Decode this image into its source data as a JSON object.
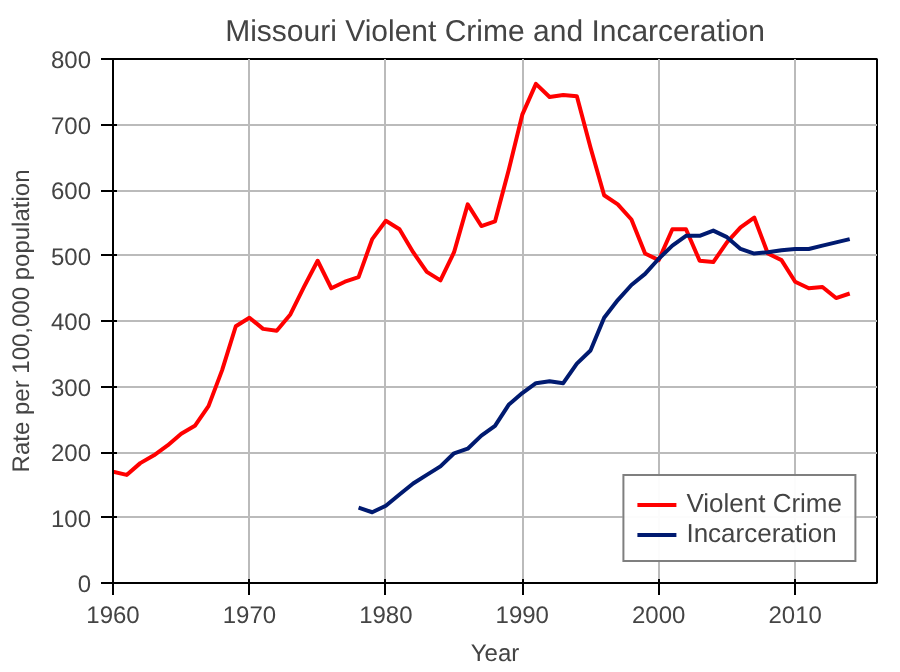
{
  "chart_data": {
    "type": "line",
    "title": "Missouri Violent Crime and Incarceration",
    "xlabel": "Year",
    "ylabel": "Rate per 100,000 population",
    "xlim": [
      1960,
      2016
    ],
    "xticks": [
      1960,
      1970,
      1980,
      1990,
      2000,
      2010
    ],
    "ylim": [
      0,
      800
    ],
    "yticks": [
      0,
      100,
      200,
      300,
      400,
      500,
      600,
      700,
      800
    ],
    "grid": true,
    "legend": "bottom right",
    "line_style": "solid",
    "series": [
      {
        "name": "Violent Crime",
        "color": "#ff0000",
        "x": [
          1960,
          1961,
          1962,
          1963,
          1964,
          1965,
          1966,
          1967,
          1968,
          1969,
          1970,
          1971,
          1972,
          1973,
          1974,
          1975,
          1976,
          1977,
          1978,
          1979,
          1980,
          1981,
          1982,
          1983,
          1984,
          1985,
          1986,
          1987,
          1988,
          1989,
          1990,
          1991,
          1992,
          1993,
          1994,
          1995,
          1996,
          1997,
          1998,
          1999,
          2000,
          2001,
          2002,
          2003,
          2004,
          2005,
          2006,
          2007,
          2008,
          2009,
          2010,
          2011,
          2012,
          2013,
          2014
        ],
        "values": [
          170,
          165,
          183,
          195,
          210,
          228,
          240,
          270,
          325,
          392,
          405,
          388,
          385,
          410,
          452,
          492,
          450,
          460,
          467,
          525,
          553,
          540,
          505,
          475,
          462,
          505,
          578,
          545,
          552,
          630,
          715,
          762,
          742,
          745,
          743,
          665,
          592,
          578,
          555,
          503,
          493,
          540,
          540,
          492,
          490,
          520,
          543,
          558,
          503,
          493,
          460,
          450,
          452,
          435,
          442
        ]
      },
      {
        "name": "Incarceration",
        "color": "#001a70",
        "x": [
          1978,
          1979,
          1980,
          1981,
          1982,
          1983,
          1984,
          1985,
          1986,
          1987,
          1988,
          1989,
          1990,
          1991,
          1992,
          1993,
          1994,
          1995,
          1996,
          1997,
          1998,
          1999,
          2000,
          2001,
          2002,
          2003,
          2004,
          2005,
          2006,
          2007,
          2008,
          2009,
          2010,
          2011,
          2012,
          2013,
          2014
        ],
        "values": [
          115,
          108,
          118,
          135,
          152,
          165,
          178,
          198,
          205,
          225,
          240,
          272,
          290,
          305,
          308,
          305,
          335,
          355,
          405,
          432,
          455,
          472,
          495,
          515,
          530,
          530,
          538,
          528,
          510,
          503,
          505,
          508,
          510,
          510,
          515,
          520,
          525
        ]
      }
    ]
  }
}
